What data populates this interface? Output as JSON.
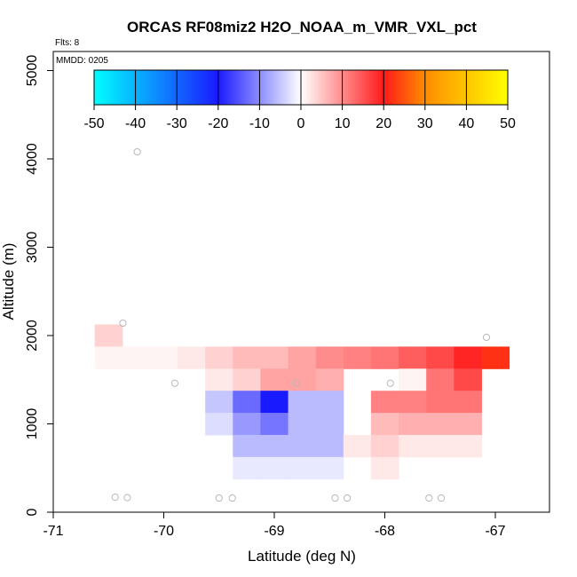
{
  "chart_data": {
    "type": "heatmap",
    "title": "ORCAS RF08miz2 H2O_NOAA_m_VMR_VXL_pct",
    "annotations": {
      "flights": "Flts: 8",
      "date": "MMDD: 0205"
    },
    "xlabel": "Latitude (deg N)",
    "ylabel": "Altitude (m)",
    "xlim": [
      -71,
      -66.5
    ],
    "ylim": [
      0,
      5200
    ],
    "xticks": [
      -71,
      -70,
      -69,
      -68,
      -67
    ],
    "xtick_labels": [
      "-71",
      "-70",
      "-69",
      "-68",
      "-67"
    ],
    "yticks": [
      0,
      1000,
      2000,
      3000,
      4000,
      5000
    ],
    "ytick_labels": [
      "0",
      "1000",
      "2000",
      "3000",
      "4000",
      "5000"
    ],
    "bin": {
      "dx": 0.25,
      "dy": 250
    },
    "colorbar": {
      "min": -50,
      "max": 50,
      "ticks": [
        -50,
        -40,
        -30,
        -20,
        -10,
        0,
        10,
        20,
        30,
        40,
        50
      ],
      "tick_labels": [
        "-50",
        "-40",
        "-30",
        "-20",
        "-10",
        "0",
        "10",
        "20",
        "30",
        "40",
        "50"
      ],
      "colors": {
        "neg50": "#00ffff",
        "neg20": "#1a1aff",
        "neg10": "#8c8cff",
        "zero": "#ffffff",
        "pos10": "#ff8c8c",
        "pos20": "#ff1a1a",
        "pos30": "#ff8c00",
        "pos50": "#ffff00"
      }
    },
    "cells": [
      {
        "x": -70.5,
        "y": 2000,
        "v": 4
      },
      {
        "x": -70.5,
        "y": 1750,
        "v": 1
      },
      {
        "x": -70.25,
        "y": 1750,
        "v": 1
      },
      {
        "x": -70.0,
        "y": 1750,
        "v": 1
      },
      {
        "x": -69.75,
        "y": 1750,
        "v": 2
      },
      {
        "x": -69.5,
        "y": 1750,
        "v": 4
      },
      {
        "x": -69.25,
        "y": 1750,
        "v": 6
      },
      {
        "x": -69.0,
        "y": 1750,
        "v": 6
      },
      {
        "x": -68.75,
        "y": 1750,
        "v": 8
      },
      {
        "x": -68.5,
        "y": 1750,
        "v": 10
      },
      {
        "x": -68.25,
        "y": 1750,
        "v": 11
      },
      {
        "x": -68.0,
        "y": 1750,
        "v": 12
      },
      {
        "x": -67.75,
        "y": 1750,
        "v": 14
      },
      {
        "x": -67.5,
        "y": 1750,
        "v": 16
      },
      {
        "x": -67.25,
        "y": 1750,
        "v": 19
      },
      {
        "x": -67.0,
        "y": 1750,
        "v": 22
      },
      {
        "x": -69.5,
        "y": 1500,
        "v": 2
      },
      {
        "x": -69.25,
        "y": 1500,
        "v": 4
      },
      {
        "x": -69.0,
        "y": 1500,
        "v": 8
      },
      {
        "x": -68.75,
        "y": 1500,
        "v": 8
      },
      {
        "x": -68.5,
        "y": 1500,
        "v": 7
      },
      {
        "x": -67.75,
        "y": 1500,
        "v": 1
      },
      {
        "x": -67.5,
        "y": 1500,
        "v": 12
      },
      {
        "x": -67.25,
        "y": 1500,
        "v": 16
      },
      {
        "x": -69.5,
        "y": 1250,
        "v": -5
      },
      {
        "x": -69.25,
        "y": 1250,
        "v": -13
      },
      {
        "x": -69.0,
        "y": 1250,
        "v": -20
      },
      {
        "x": -68.75,
        "y": 1250,
        "v": -6
      },
      {
        "x": -68.5,
        "y": 1250,
        "v": -6
      },
      {
        "x": -68.0,
        "y": 1250,
        "v": 11
      },
      {
        "x": -67.75,
        "y": 1250,
        "v": 11
      },
      {
        "x": -67.5,
        "y": 1250,
        "v": 12
      },
      {
        "x": -67.25,
        "y": 1250,
        "v": 12
      },
      {
        "x": -69.5,
        "y": 1000,
        "v": -3
      },
      {
        "x": -69.25,
        "y": 1000,
        "v": -9
      },
      {
        "x": -69.0,
        "y": 1000,
        "v": -12
      },
      {
        "x": -68.75,
        "y": 1000,
        "v": -6
      },
      {
        "x": -68.5,
        "y": 1000,
        "v": -6
      },
      {
        "x": -68.0,
        "y": 1000,
        "v": 6
      },
      {
        "x": -67.75,
        "y": 1000,
        "v": 7
      },
      {
        "x": -67.5,
        "y": 1000,
        "v": 7
      },
      {
        "x": -67.25,
        "y": 1000,
        "v": 7
      },
      {
        "x": -69.25,
        "y": 750,
        "v": -6
      },
      {
        "x": -69.0,
        "y": 750,
        "v": -6
      },
      {
        "x": -68.75,
        "y": 750,
        "v": -6
      },
      {
        "x": -68.5,
        "y": 750,
        "v": -6
      },
      {
        "x": -68.25,
        "y": 750,
        "v": 2
      },
      {
        "x": -68.0,
        "y": 750,
        "v": 4
      },
      {
        "x": -67.75,
        "y": 750,
        "v": 2
      },
      {
        "x": -67.5,
        "y": 750,
        "v": 2
      },
      {
        "x": -67.25,
        "y": 750,
        "v": 2
      },
      {
        "x": -69.25,
        "y": 500,
        "v": -2
      },
      {
        "x": -69.0,
        "y": 500,
        "v": -2
      },
      {
        "x": -68.75,
        "y": 500,
        "v": -2
      },
      {
        "x": -68.5,
        "y": 500,
        "v": -2
      },
      {
        "x": -68.0,
        "y": 500,
        "v": 2
      }
    ],
    "points": [
      {
        "x": -70.24,
        "y": 4080
      },
      {
        "x": -70.37,
        "y": 2140
      },
      {
        "x": -69.9,
        "y": 1460
      },
      {
        "x": -68.8,
        "y": 1460
      },
      {
        "x": -67.95,
        "y": 1460
      },
      {
        "x": -67.08,
        "y": 1980
      },
      {
        "x": -70.44,
        "y": 170
      },
      {
        "x": -70.33,
        "y": 165
      },
      {
        "x": -69.5,
        "y": 160
      },
      {
        "x": -69.38,
        "y": 160
      },
      {
        "x": -68.45,
        "y": 160
      },
      {
        "x": -68.34,
        "y": 160
      },
      {
        "x": -67.6,
        "y": 160
      },
      {
        "x": -67.49,
        "y": 160
      }
    ]
  }
}
